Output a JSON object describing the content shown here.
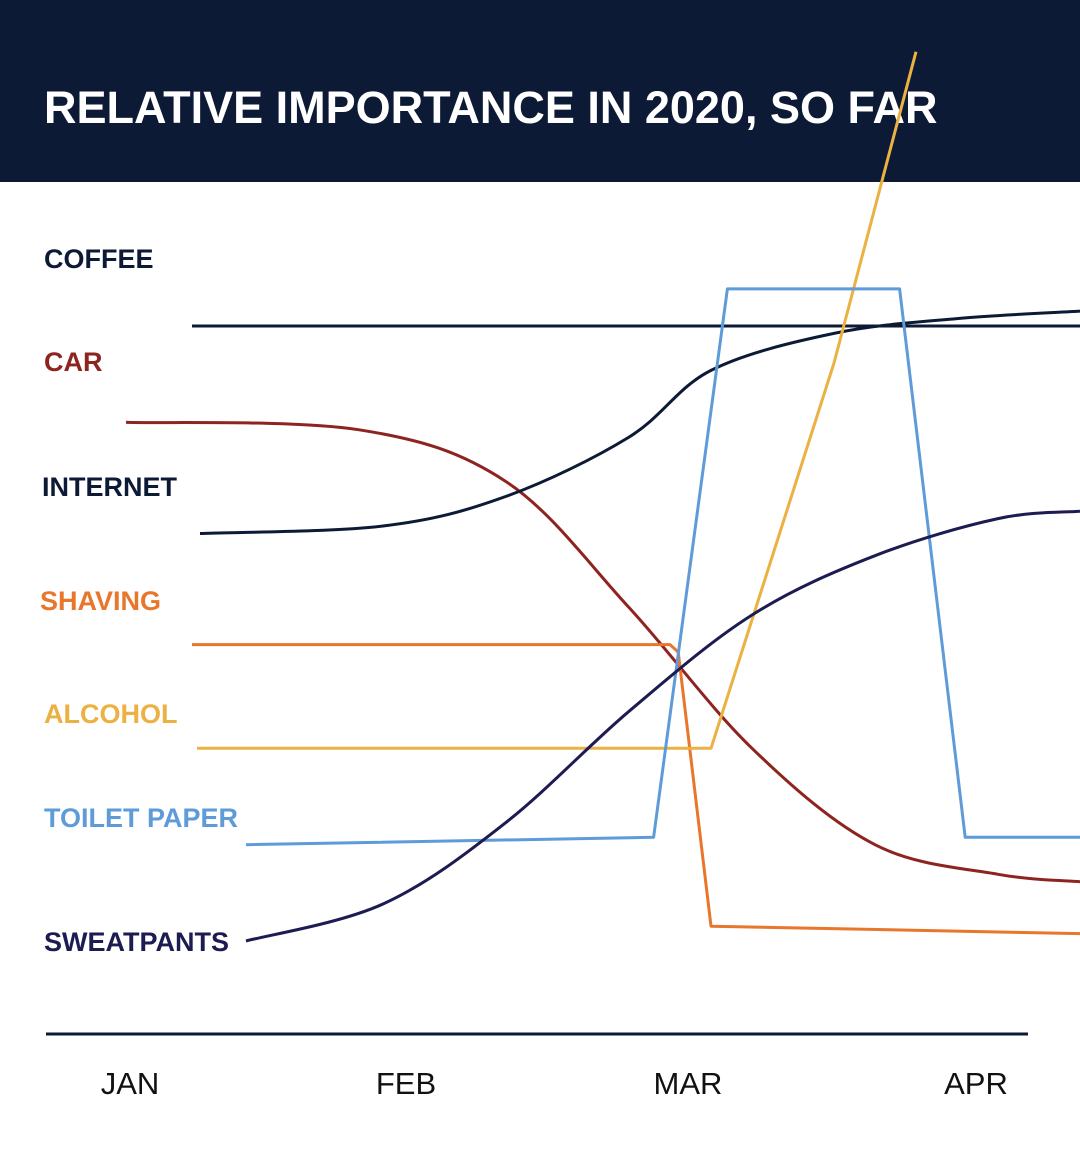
{
  "colors": {
    "header_bg": "#0c1a36",
    "header_text": "#ffffff",
    "coffee": "#0c1a36",
    "car": "#8e2420",
    "internet": "#0c1a36",
    "shaving": "#e8762b",
    "alcohol": "#ebb142",
    "toilet_paper": "#5e9bd8",
    "sweatpants": "#1c1b52",
    "axis": "#0c1a36"
  },
  "chart_data": {
    "type": "line",
    "title": "RELATIVE IMPORTANCE IN 2020, SO FAR",
    "xlabel": "",
    "ylabel": "",
    "categories": [
      "JAN",
      "FEB",
      "MAR",
      "APR"
    ],
    "x_range": [
      "JAN",
      "APR"
    ],
    "y_ticks_shown": false,
    "grid": false,
    "legend": "series names written at the start of each line, left side",
    "series": [
      {
        "key": "coffee",
        "name": "COFFEE",
        "color": "#0c1a36",
        "shape": "linear",
        "points": [
          [
            0.0,
            0.83
          ],
          [
            1.0,
            0.83
          ]
        ]
      },
      {
        "key": "car",
        "name": "CAR",
        "color": "#8e2420",
        "shape": "smooth",
        "points": [
          [
            0.0,
            0.7
          ],
          [
            0.12,
            0.69
          ],
          [
            0.3,
            0.62
          ],
          [
            0.45,
            0.45
          ],
          [
            0.6,
            0.26
          ],
          [
            0.75,
            0.13
          ],
          [
            0.9,
            0.09
          ],
          [
            1.0,
            0.08
          ]
        ]
      },
      {
        "key": "internet",
        "name": "INTERNET",
        "color": "#0c1a36",
        "shape": "smooth",
        "points": [
          [
            0.0,
            0.55
          ],
          [
            0.15,
            0.56
          ],
          [
            0.3,
            0.6
          ],
          [
            0.45,
            0.68
          ],
          [
            0.55,
            0.77
          ],
          [
            0.7,
            0.82
          ],
          [
            0.85,
            0.84
          ],
          [
            1.0,
            0.85
          ]
        ]
      },
      {
        "key": "shaving",
        "name": "SHAVING",
        "color": "#e8762b",
        "shape": "linear",
        "points": [
          [
            0.0,
            0.4
          ],
          [
            0.5,
            0.4
          ],
          [
            0.51,
            0.39
          ],
          [
            0.55,
            0.02
          ],
          [
            1.0,
            0.01
          ]
        ]
      },
      {
        "key": "alcohol",
        "name": "ALCOHOL",
        "color": "#ebb142",
        "shape": "linear",
        "points": [
          [
            0.0,
            0.26
          ],
          [
            0.55,
            0.26
          ],
          [
            0.7,
            0.78
          ],
          [
            0.8,
            1.2
          ]
        ]
      },
      {
        "key": "toilet_paper",
        "name": "TOILET PAPER",
        "color": "#5e9bd8",
        "shape": "linear",
        "points": [
          [
            0.0,
            0.13
          ],
          [
            0.48,
            0.14
          ],
          [
            0.57,
            0.88
          ],
          [
            0.78,
            0.88
          ],
          [
            0.86,
            0.14
          ],
          [
            1.0,
            0.14
          ]
        ]
      },
      {
        "key": "sweatpants",
        "name": "SWEATPANTS",
        "color": "#1c1b52",
        "shape": "smooth",
        "points": [
          [
            0.0,
            0.0
          ],
          [
            0.15,
            0.05
          ],
          [
            0.3,
            0.16
          ],
          [
            0.45,
            0.31
          ],
          [
            0.6,
            0.44
          ],
          [
            0.75,
            0.52
          ],
          [
            0.9,
            0.57
          ],
          [
            1.0,
            0.58
          ]
        ]
      }
    ]
  }
}
